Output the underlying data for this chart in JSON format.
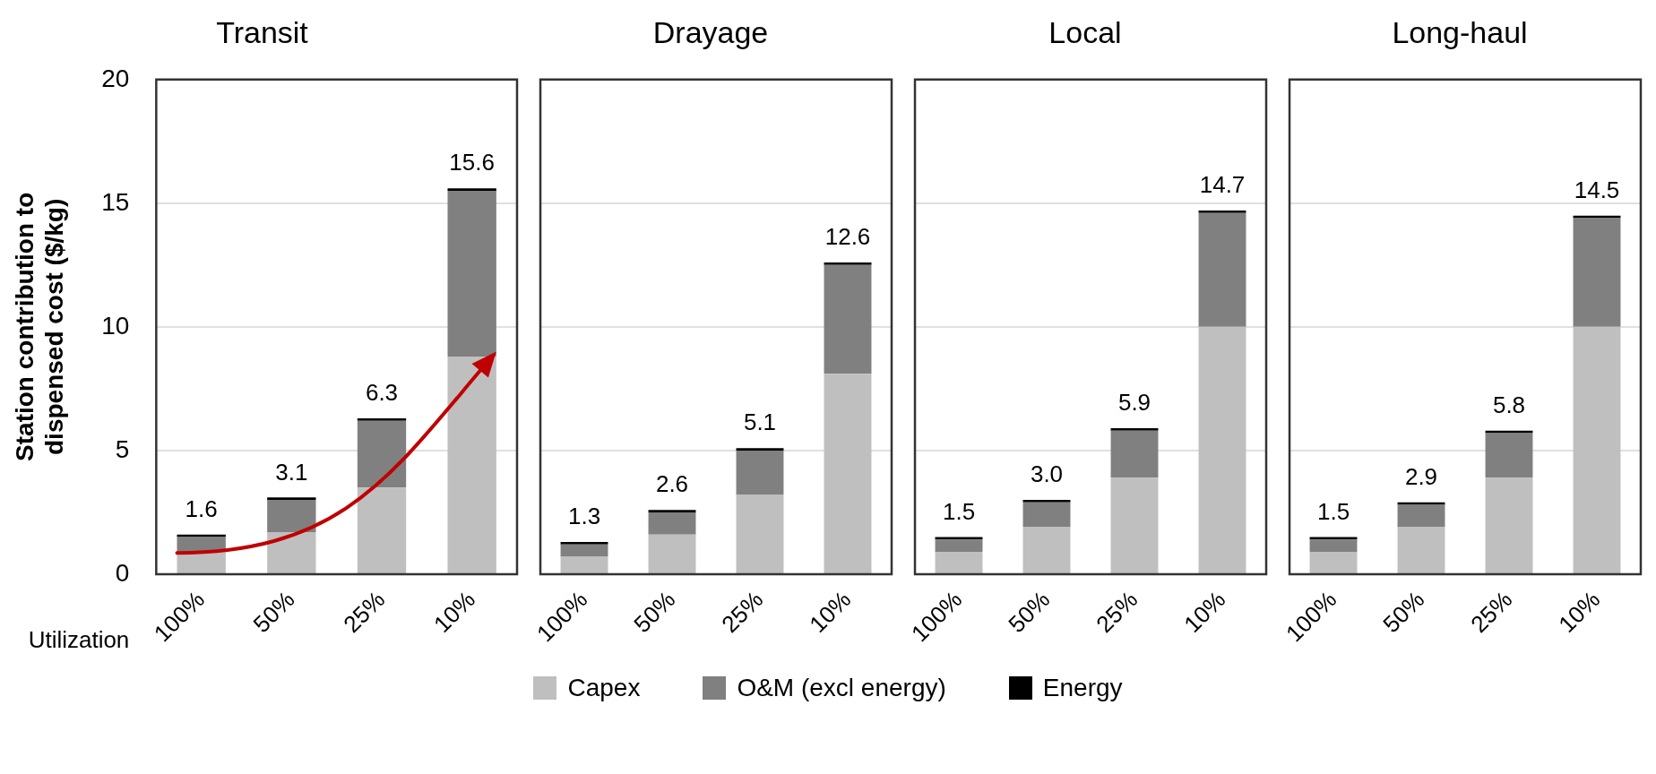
{
  "chart_data": [
    {
      "type": "bar",
      "title": "Transit",
      "ylabel": "Station contribution to dispensed cost ($/kg)",
      "xlabel": "Utilization",
      "categories": [
        "100%",
        "50%",
        "25%",
        "10%"
      ],
      "stacked": true,
      "ylim": [
        0,
        20
      ],
      "yticks": [
        0,
        5,
        10,
        15,
        20
      ],
      "grid": "y",
      "legend": "bottom",
      "totals": [
        "1.6",
        "3.1",
        "6.3",
        "15.6"
      ],
      "series": [
        {
          "name": "Capex",
          "color": "#bfbfbf",
          "values": [
            0.9,
            1.7,
            3.5,
            8.8
          ]
        },
        {
          "name": "O&M (excl energy)",
          "color": "#808080",
          "values": [
            0.6,
            1.3,
            2.7,
            6.7
          ]
        },
        {
          "name": "Energy",
          "color": "#000000",
          "values": [
            0.1,
            0.1,
            0.1,
            0.1
          ]
        }
      ]
    },
    {
      "type": "bar",
      "title": "Drayage",
      "categories": [
        "100%",
        "50%",
        "25%",
        "10%"
      ],
      "stacked": true,
      "ylim": [
        0,
        20
      ],
      "yticks": [
        0,
        5,
        10,
        15,
        20
      ],
      "grid": "y",
      "tick_labels": "x",
      "totals": [
        "1.3",
        "2.6",
        "5.1",
        "12.6"
      ],
      "series": [
        {
          "color": "#bfbfbf",
          "values": [
            0.7,
            1.6,
            3.2,
            8.1
          ]
        },
        {
          "color": "#808080",
          "values": [
            0.5,
            0.9,
            1.8,
            4.4
          ]
        },
        {
          "color": "#000000",
          "values": [
            0.1,
            0.1,
            0.1,
            0.1
          ]
        }
      ]
    },
    {
      "type": "bar",
      "title": "Local",
      "categories": [
        "100%",
        "50%",
        "25%",
        "10%"
      ],
      "stacked": true,
      "ylim": [
        0,
        20
      ],
      "yticks": [
        0,
        5,
        10,
        15,
        20
      ],
      "grid": "y",
      "tick_labels": "x",
      "totals": [
        "1.5",
        "3.0",
        "5.9",
        "14.7"
      ],
      "series": [
        {
          "color": "#bfbfbf",
          "values": [
            0.9,
            1.9,
            3.9,
            10.0
          ]
        },
        {
          "color": "#808080",
          "values": [
            0.5,
            1.0,
            1.9,
            4.6
          ]
        },
        {
          "color": "#000000",
          "values": [
            0.1,
            0.1,
            0.1,
            0.1
          ]
        }
      ]
    },
    {
      "type": "bar",
      "title": "Long-haul",
      "categories": [
        "100%",
        "50%",
        "25%",
        "10%"
      ],
      "stacked": true,
      "ylim": [
        0,
        20
      ],
      "yticks": [
        0,
        5,
        10,
        15,
        20
      ],
      "grid": "y",
      "tick_labels": "x",
      "totals": [
        "1.5",
        "2.9",
        "5.8",
        "14.5"
      ],
      "series": [
        {
          "color": "#bfbfbf",
          "values": [
            0.9,
            1.9,
            3.9,
            10.0
          ]
        },
        {
          "color": "#808080",
          "values": [
            0.5,
            0.9,
            1.8,
            4.4
          ]
        },
        {
          "color": "#000000",
          "values": [
            0.1,
            0.1,
            0.1,
            0.1
          ]
        }
      ]
    }
  ]
}
